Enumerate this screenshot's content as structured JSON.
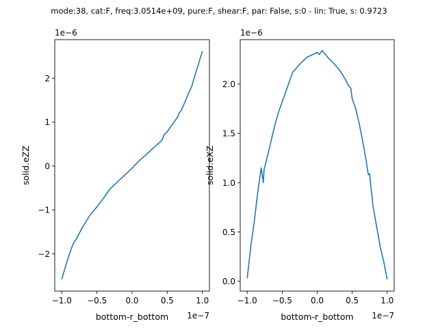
{
  "suptitle": "mode:38, cat:F, freq:3.0514e+09, pure:F, shear:F, par: False, s:0 - lin: True, s: 0.9723",
  "line_color": "#1f77b4",
  "chart_data": [
    {
      "type": "line",
      "xlabel": "bottom-r_bottom",
      "ylabel": "solid.eZZ",
      "x_offset_label": "1e−7",
      "y_offset_label": "1e−6",
      "xlim": [
        -1.1,
        1.1
      ],
      "ylim": [
        -2.85,
        2.88
      ],
      "xticks": [
        -1.0,
        -0.5,
        0.0,
        0.5,
        1.0
      ],
      "xtick_labels": [
        "−1.0",
        "−0.5",
        "0.0",
        "0.5",
        "1.0"
      ],
      "yticks": [
        -2,
        -1,
        0,
        1,
        2
      ],
      "ytick_labels": [
        "−2",
        "−1",
        "0",
        "1",
        "2"
      ],
      "series": [
        {
          "x": [
            -1.0,
            -0.95,
            -0.9,
            -0.85,
            -0.83,
            -0.8,
            -0.75,
            -0.7,
            -0.6,
            -0.5,
            -0.4,
            -0.35,
            -0.3,
            -0.2,
            -0.1,
            0.0,
            0.1,
            0.2,
            0.3,
            0.4,
            0.43,
            0.45,
            0.5,
            0.55,
            0.6,
            0.65,
            0.66,
            0.7,
            0.75,
            0.8,
            0.85,
            0.9,
            0.95,
            1.0
          ],
          "y": [
            -2.58,
            -2.3,
            -2.05,
            -1.82,
            -1.75,
            -1.68,
            -1.53,
            -1.38,
            -1.12,
            -0.93,
            -0.72,
            -0.6,
            -0.5,
            -0.35,
            -0.2,
            -0.05,
            0.12,
            0.26,
            0.41,
            0.55,
            0.6,
            0.7,
            0.78,
            0.9,
            1.01,
            1.12,
            1.18,
            1.27,
            1.45,
            1.65,
            1.82,
            2.1,
            2.35,
            2.62
          ]
        }
      ]
    },
    {
      "type": "line",
      "xlabel": "bottom-r_bottom",
      "ylabel": "solid.eXZ",
      "x_offset_label": "1e−7",
      "y_offset_label": "1e−6",
      "xlim": [
        -1.1,
        1.1
      ],
      "ylim": [
        -0.1,
        2.45
      ],
      "xticks": [
        -1.0,
        -0.5,
        0.0,
        0.5,
        1.0
      ],
      "xtick_labels": [
        "−1.0",
        "−0.5",
        "0.0",
        "0.5",
        "1.0"
      ],
      "yticks": [
        0.0,
        0.5,
        1.0,
        1.5,
        2.0
      ],
      "ytick_labels": [
        "0.0",
        "0.5",
        "1.0",
        "1.5",
        "2.0"
      ],
      "series": [
        {
          "x": [
            -1.0,
            -0.95,
            -0.9,
            -0.85,
            -0.8,
            -0.77,
            -0.76,
            -0.7,
            -0.6,
            -0.55,
            -0.45,
            -0.35,
            -0.25,
            -0.15,
            0.0,
            0.03,
            0.07,
            0.15,
            0.25,
            0.33,
            0.4,
            0.45,
            0.48,
            0.5,
            0.55,
            0.6,
            0.65,
            0.7,
            0.73,
            0.75,
            0.76,
            0.8,
            0.85,
            0.9,
            0.95,
            1.0
          ],
          "y": [
            0.03,
            0.35,
            0.6,
            0.9,
            1.15,
            1.0,
            1.13,
            1.3,
            1.6,
            1.72,
            1.92,
            2.12,
            2.2,
            2.27,
            2.32,
            2.3,
            2.34,
            2.27,
            2.2,
            2.13,
            2.05,
            1.98,
            1.96,
            1.85,
            1.75,
            1.6,
            1.42,
            1.22,
            1.08,
            1.09,
            1.0,
            0.75,
            0.55,
            0.35,
            0.2,
            0.02
          ]
        }
      ]
    }
  ]
}
